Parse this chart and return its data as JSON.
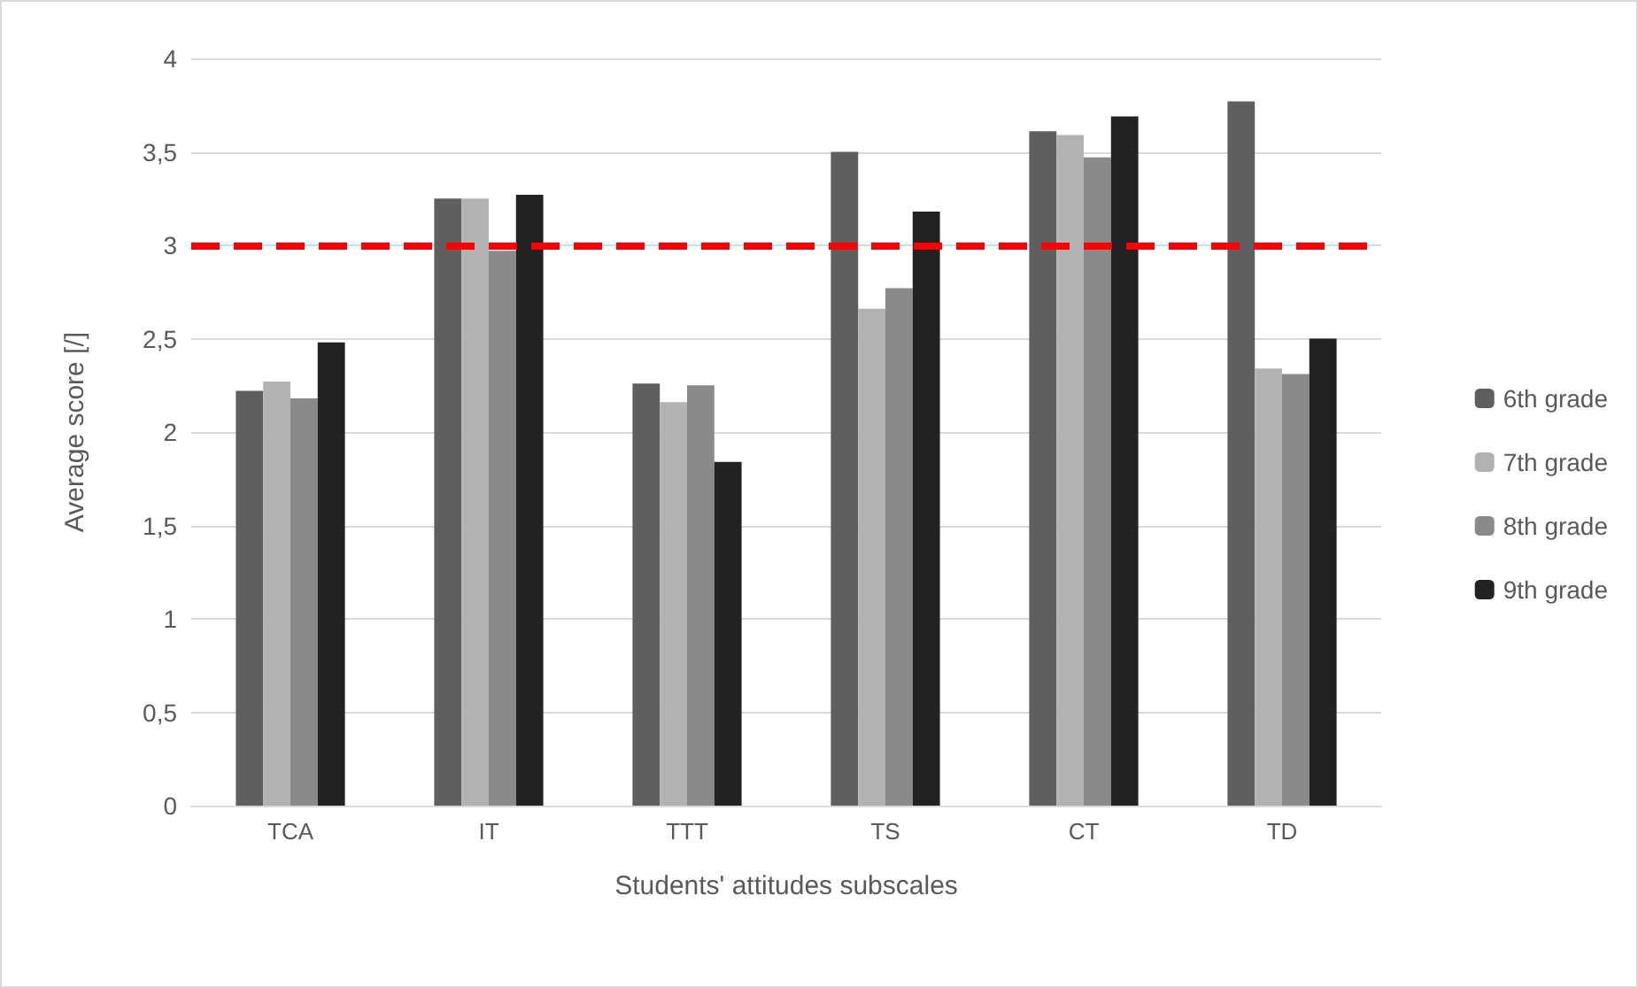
{
  "chart_data": {
    "type": "bar",
    "xlabel": "Students' attitudes subscales",
    "ylabel": "Average score [/]",
    "categories": [
      "TCA",
      "IT",
      "TTT",
      "TS",
      "CT",
      "TD"
    ],
    "series": [
      {
        "name": "6th grade",
        "color": "#5f5f5f",
        "values": [
          2.22,
          3.25,
          2.26,
          3.5,
          3.61,
          3.77
        ]
      },
      {
        "name": "7th grade",
        "color": "#b2b2b2",
        "values": [
          2.27,
          3.25,
          2.16,
          2.66,
          3.59,
          2.34
        ]
      },
      {
        "name": "8th grade",
        "color": "#8a8a8a",
        "values": [
          2.18,
          2.97,
          2.25,
          2.77,
          3.47,
          2.31
        ]
      },
      {
        "name": "9th grade",
        "color": "#222222",
        "values": [
          2.48,
          3.27,
          1.84,
          3.18,
          3.69,
          2.5
        ]
      }
    ],
    "ylim": [
      0,
      4
    ],
    "yticks": [
      0,
      {
        "value": 0.5,
        "label": "0,5"
      },
      1,
      {
        "value": 1.5,
        "label": "1,5"
      },
      2,
      {
        "value": 2.5,
        "label": "2,5"
      },
      3,
      {
        "value": 3.5,
        "label": "3,5"
      },
      4
    ],
    "ref_lines": [
      {
        "axis": "y",
        "value": 3,
        "color": "#ff0000",
        "line_style": "dashed"
      }
    ],
    "grid": "y",
    "legend": "right"
  }
}
